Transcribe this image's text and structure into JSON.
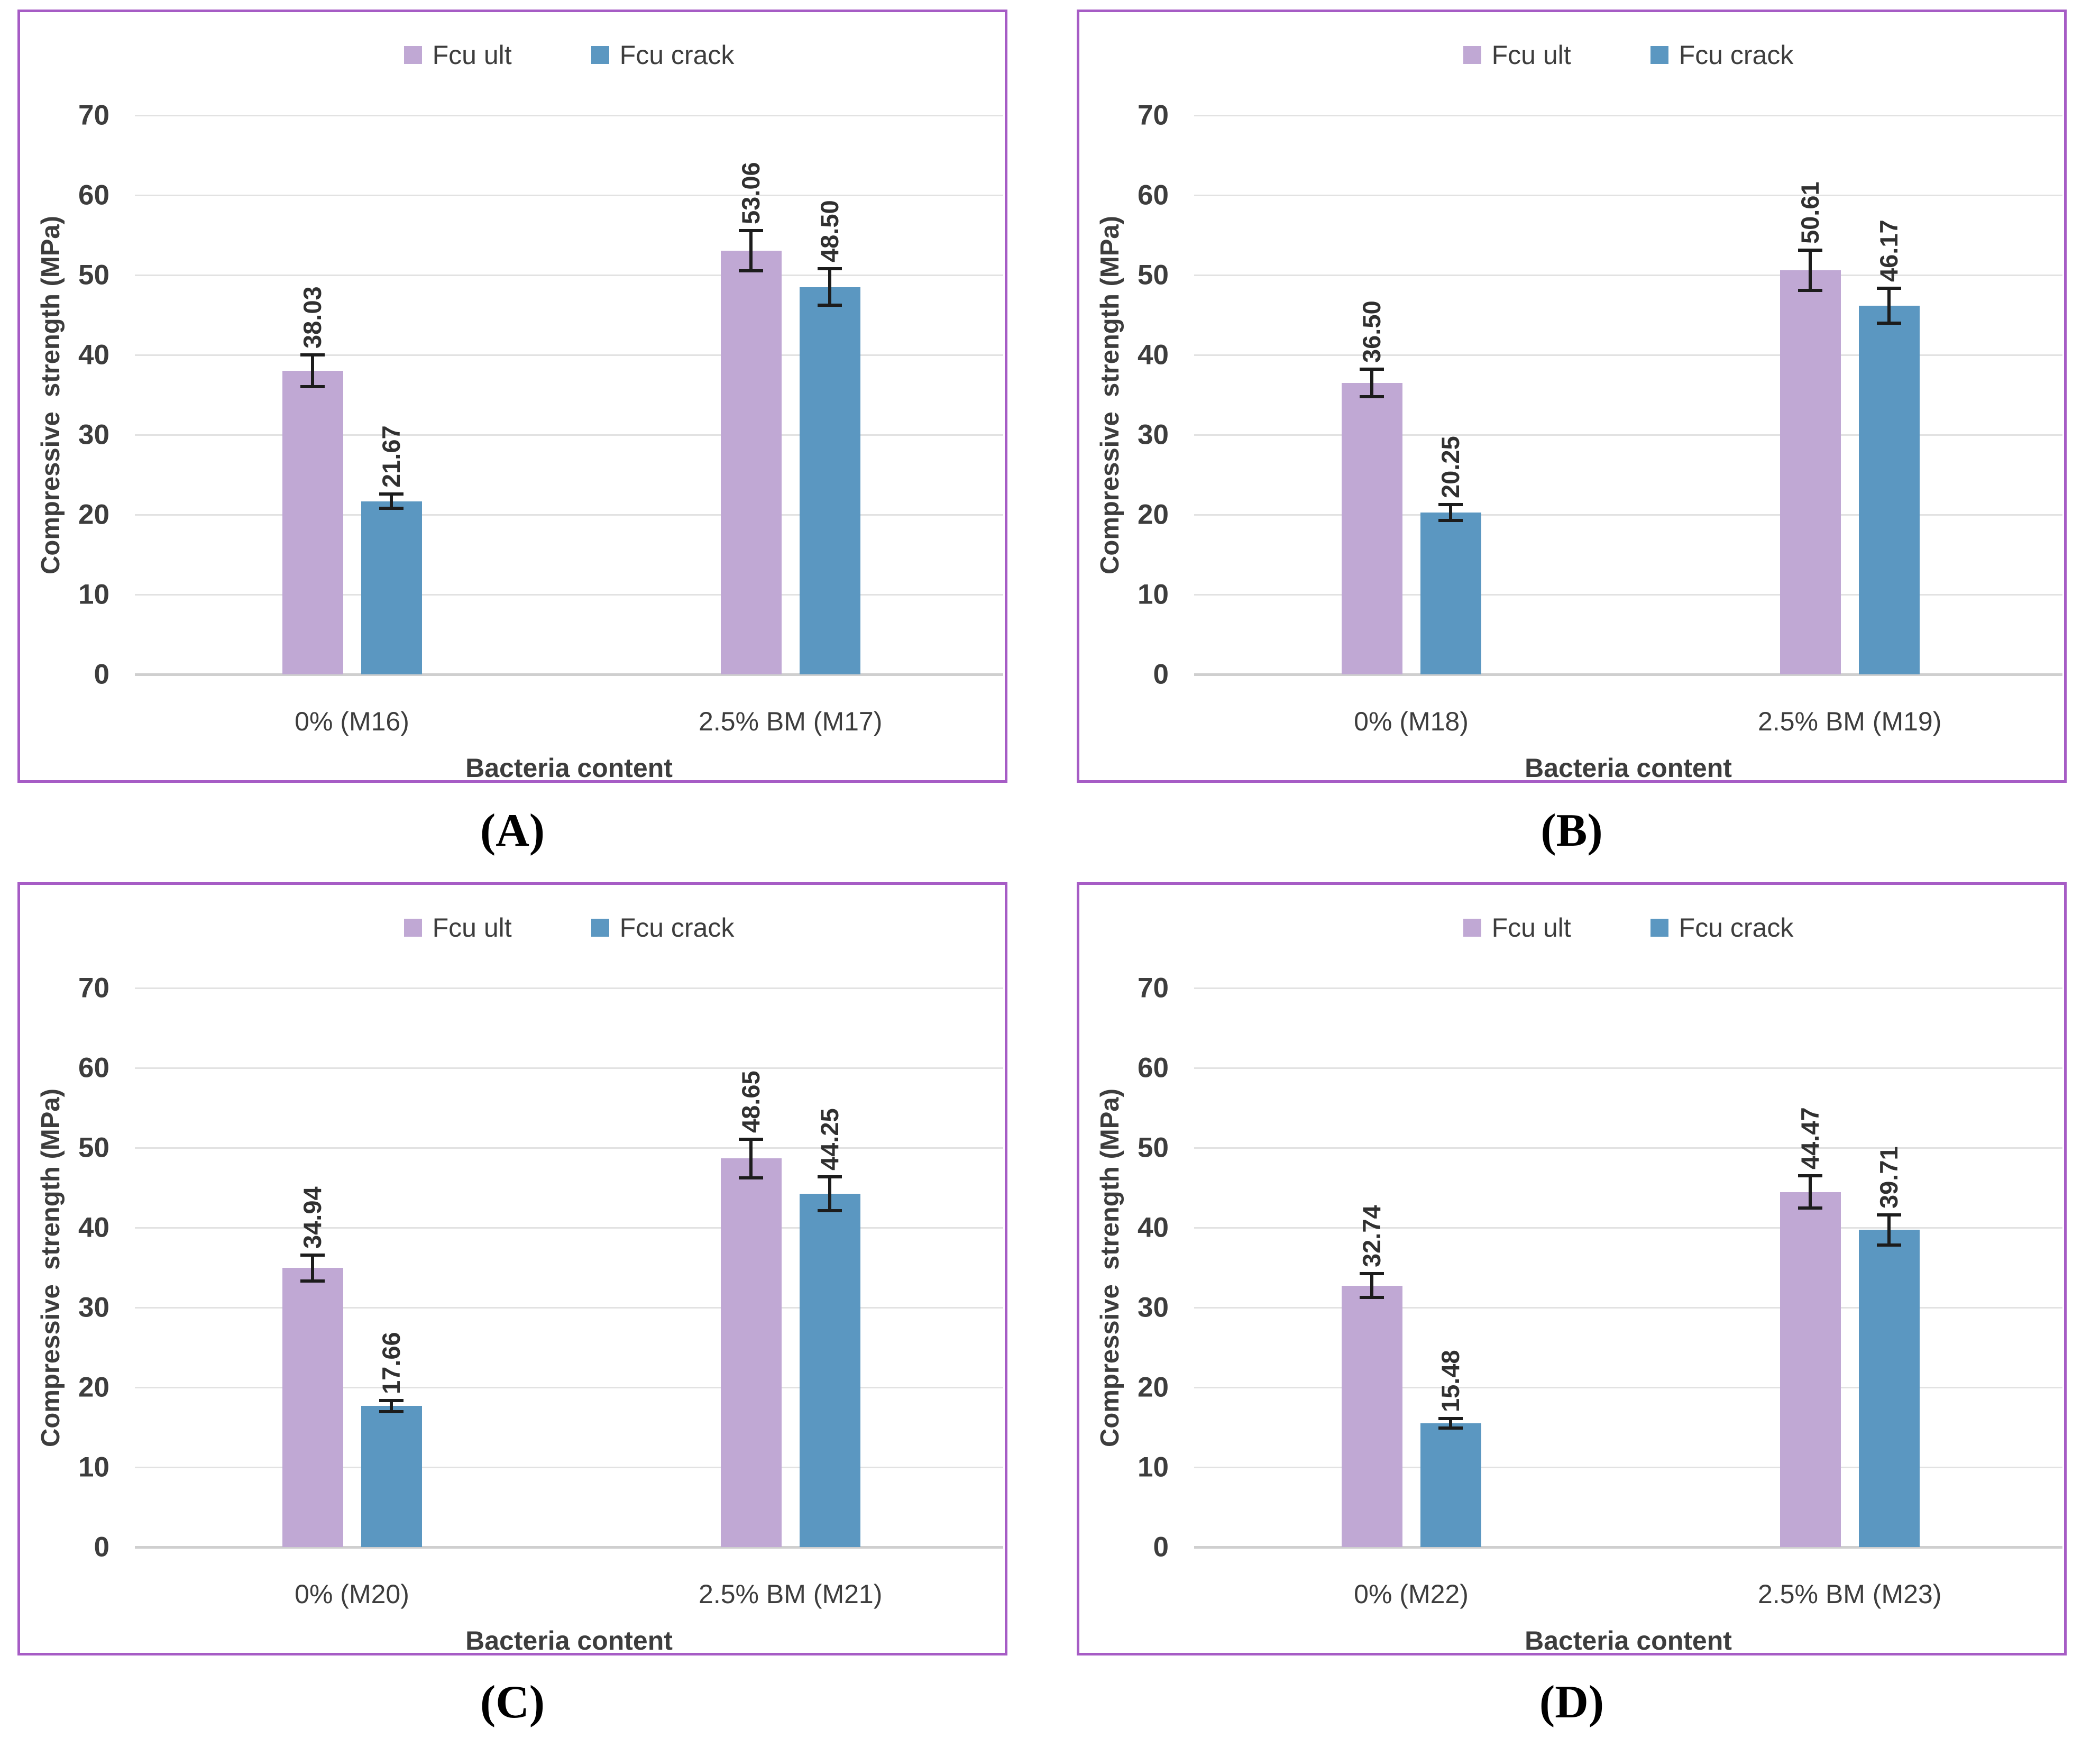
{
  "style": {
    "panel_border": "#a65cc5",
    "gridline": "#e2e2e2",
    "axis_line": "#cfcfcf",
    "text": "#3d3d3d",
    "error_bar": "#1c1c1c",
    "background": "#ffffff",
    "fcu_ult_color": "#c0a8d4",
    "fcu_crack_color": "#5b97c1"
  },
  "chart_data": [
    {
      "id": "A",
      "caption": "(A)",
      "type": "bar",
      "categories": [
        "0% (M16)",
        "2.5% BM (M17)"
      ],
      "series": [
        {
          "name": "Fcu ult",
          "color": "#c0a8d4",
          "values": [
            38.03,
            53.06
          ],
          "errors": [
            2.0,
            2.5
          ]
        },
        {
          "name": "Fcu crack",
          "color": "#5b97c1",
          "values": [
            21.67,
            48.5
          ],
          "errors": [
            0.9,
            2.3
          ]
        }
      ],
      "xlabel": "Bacteria content",
      "ylabel": "Compressive  strength (MPa)",
      "ylim": [
        0,
        70
      ],
      "yticks": [
        0,
        10,
        20,
        30,
        40,
        50,
        60,
        70
      ],
      "grid": true,
      "legend_position": "top"
    },
    {
      "id": "B",
      "caption": "(B)",
      "type": "bar",
      "categories": [
        "0% (M18)",
        "2.5% BM (M19)"
      ],
      "series": [
        {
          "name": "Fcu ult",
          "color": "#c0a8d4",
          "values": [
            36.5,
            50.61
          ],
          "errors": [
            1.7,
            2.5
          ]
        },
        {
          "name": "Fcu crack",
          "color": "#5b97c1",
          "values": [
            20.25,
            46.17
          ],
          "errors": [
            1.0,
            2.2
          ]
        }
      ],
      "xlabel": "Bacteria content",
      "ylabel": "Compressive  strength (MPa)",
      "ylim": [
        0,
        70
      ],
      "yticks": [
        0,
        10,
        20,
        30,
        40,
        50,
        60,
        70
      ],
      "grid": true,
      "legend_position": "top"
    },
    {
      "id": "C",
      "caption": "(C)",
      "type": "bar",
      "categories": [
        "0% (M20)",
        "2.5% BM (M21)"
      ],
      "series": [
        {
          "name": "Fcu ult",
          "color": "#c0a8d4",
          "values": [
            34.94,
            48.65
          ],
          "errors": [
            1.6,
            2.4
          ]
        },
        {
          "name": "Fcu crack",
          "color": "#5b97c1",
          "values": [
            17.66,
            44.25
          ],
          "errors": [
            0.7,
            2.1
          ]
        }
      ],
      "xlabel": "Bacteria content",
      "ylabel": "Compressive  strength (MPa)",
      "ylim": [
        0,
        70
      ],
      "yticks": [
        0,
        10,
        20,
        30,
        40,
        50,
        60,
        70
      ],
      "grid": true,
      "legend_position": "top"
    },
    {
      "id": "D",
      "caption": "(D)",
      "type": "bar",
      "categories": [
        "0% (M22)",
        "2.5% BM (M23)"
      ],
      "series": [
        {
          "name": "Fcu ult",
          "color": "#c0a8d4",
          "values": [
            32.74,
            44.47
          ],
          "errors": [
            1.5,
            2.0
          ]
        },
        {
          "name": "Fcu crack",
          "color": "#5b97c1",
          "values": [
            15.48,
            39.71
          ],
          "errors": [
            0.6,
            1.9
          ]
        }
      ],
      "xlabel": "Bacteria content",
      "ylabel": "Compressive  strength (MPa)",
      "ylim": [
        0,
        70
      ],
      "yticks": [
        0,
        10,
        20,
        30,
        40,
        50,
        60,
        70
      ],
      "grid": true,
      "legend_position": "top"
    }
  ]
}
